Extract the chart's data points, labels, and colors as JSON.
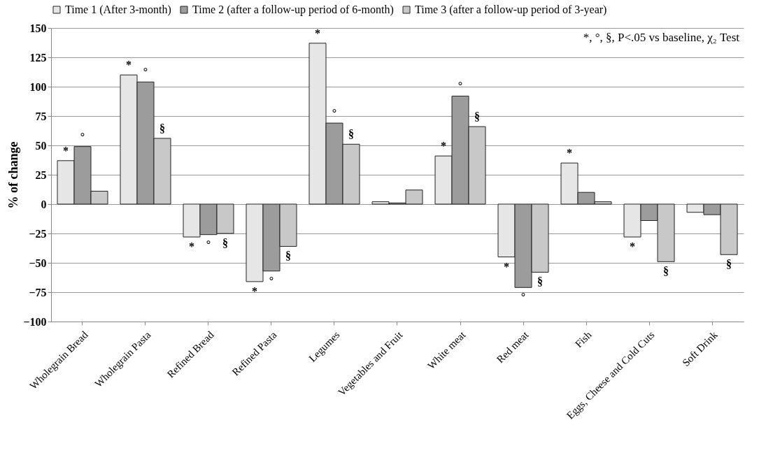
{
  "chart_data": {
    "type": "bar",
    "ylabel": "% of change",
    "categories": [
      "Wholegrain Bread",
      "Wholegrain Pasta",
      "Refined Bread",
      "Refined Pasta",
      "Legumes",
      "Vegetables and Fruit",
      "White meat",
      "Red meat",
      "Fish",
      "Eggs, Cheese and Cold Cuts",
      "Soft Drink"
    ],
    "series": [
      {
        "name": "Time 1 (After 3-month)",
        "color": "#e6e6e6",
        "values": [
          37,
          110,
          -28,
          -66,
          137,
          2,
          41,
          -45,
          35,
          -28,
          -7
        ],
        "value_labels": [
          "*",
          "*",
          "*",
          "*",
          "*",
          null,
          "*",
          "*",
          "*",
          "*",
          null
        ]
      },
      {
        "name": "Time 2 (after a follow-up period of 6-month)",
        "color": "#9c9c9c",
        "values": [
          49,
          104,
          -26,
          -57,
          69,
          1,
          92,
          -71,
          10,
          -14,
          -9
        ],
        "value_labels": [
          "°",
          "°",
          "°",
          "°",
          "°",
          null,
          "°",
          "°",
          null,
          null,
          null
        ]
      },
      {
        "name": "Time 3 (after a follow-up period of 3-year)",
        "color": "#c8c8c8",
        "values": [
          11,
          56,
          -25,
          -36,
          51,
          12,
          66,
          -58,
          2,
          -49,
          -43
        ],
        "value_labels": [
          null,
          "§",
          "§",
          "§",
          "§",
          null,
          "§",
          "§",
          null,
          "§",
          "§"
        ]
      }
    ],
    "ylim": [
      -100,
      150
    ],
    "yticks": [
      -100,
      -75,
      -50,
      -25,
      0,
      25,
      50,
      75,
      100,
      125,
      150
    ],
    "grid": "y",
    "legend": "top",
    "annotations": [
      "*, °, §, P<.05 vs baseline, χ₂ Test"
    ]
  }
}
